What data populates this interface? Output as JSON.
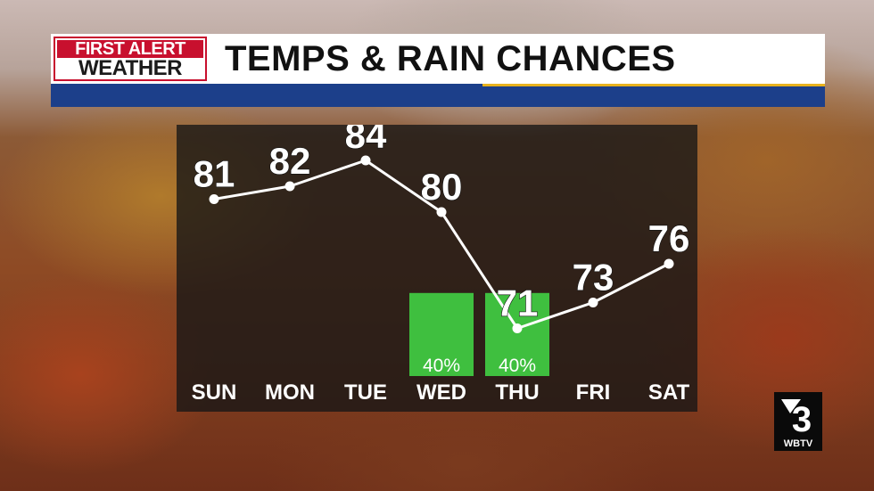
{
  "header": {
    "logo_line1": "FIRST ALERT",
    "logo_line2": "WEATHER",
    "title": "TEMPS & RAIN CHANCES"
  },
  "station": {
    "channel_glyph": "3",
    "call_letters": "WBTV"
  },
  "colors": {
    "brand_red": "#c8102e",
    "brand_blue": "#1c3f8a",
    "accent_gold": "#e7b21d",
    "rain_bar": "#3fbf3f",
    "temp_line": "#ffffff"
  },
  "chart_data": {
    "type": "line",
    "categories": [
      "SUN",
      "MON",
      "TUE",
      "WED",
      "THU",
      "FRI",
      "SAT"
    ],
    "series": [
      {
        "values": [
          81,
          82,
          84,
          80,
          71,
          73,
          76
        ]
      }
    ],
    "rain_chance": [
      null,
      null,
      null,
      40,
      40,
      null,
      null
    ],
    "rain_chance_labels": [
      null,
      null,
      null,
      "40%",
      "40%",
      null,
      null
    ],
    "grid": false,
    "legend": "none"
  }
}
